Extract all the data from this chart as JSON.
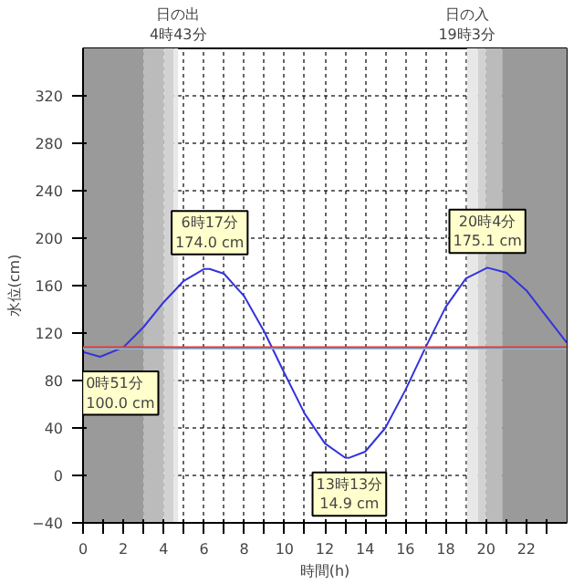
{
  "chart_data": {
    "type": "line",
    "xlabel": "時間(h)",
    "ylabel": "水位(cm)",
    "x": [
      0,
      0.85,
      2,
      3,
      4,
      5,
      6,
      6.283,
      7,
      8,
      9,
      10,
      11,
      12,
      13,
      13.217,
      14,
      15,
      16,
      17,
      18,
      19,
      20.067,
      21,
      22,
      23,
      24
    ],
    "series": [
      {
        "color": "#3333dd",
        "values": [
          104,
          100.0,
          108,
          125,
          146,
          164,
          174,
          174.0,
          170,
          151,
          121,
          86,
          52,
          27,
          15,
          14.9,
          20,
          40,
          72,
          108,
          142,
          166,
          175.1,
          171,
          156,
          134,
          112
        ]
      }
    ],
    "xlim": [
      0,
      24
    ],
    "ylim": [
      -40,
      360
    ],
    "xticks": [
      0,
      {
        "value": 1,
        "label": null
      },
      2,
      {
        "value": 3,
        "label": null
      },
      4,
      {
        "value": 5,
        "label": null
      },
      6,
      {
        "value": 7,
        "label": null
      },
      8,
      {
        "value": 9,
        "label": null
      },
      10,
      {
        "value": 11,
        "label": null
      },
      12,
      {
        "value": 13,
        "label": null
      },
      14,
      {
        "value": 15,
        "label": null
      },
      16,
      {
        "value": 17,
        "label": null
      },
      18,
      {
        "value": 19,
        "label": null
      },
      20,
      {
        "value": 21,
        "label": null
      },
      22,
      {
        "value": 23,
        "label": null
      }
    ],
    "yticks": [
      -40,
      0,
      40,
      80,
      120,
      160,
      200,
      240,
      280,
      320
    ],
    "grid": true,
    "line_style": "solid",
    "ref_lines": [
      {
        "axis": "y",
        "value": 107,
        "color": "#66ccee"
      },
      {
        "axis": "y",
        "value": 108,
        "color": "#ee3333"
      }
    ],
    "bands": [
      {
        "axis": "x",
        "from": 0,
        "to": 3.0,
        "color": "#9a9a9a"
      },
      {
        "axis": "x",
        "from": 3.0,
        "to": 4.0,
        "color": "#bbbbbb"
      },
      {
        "axis": "x",
        "from": 4.0,
        "to": 4.5,
        "color": "#d2d2d2"
      },
      {
        "axis": "x",
        "from": 4.5,
        "to": 4.72,
        "color": "#e8e8e8"
      },
      {
        "axis": "x",
        "from": 19.05,
        "to": 19.6,
        "color": "#e8e8e8"
      },
      {
        "axis": "x",
        "from": 19.6,
        "to": 20.0,
        "color": "#d2d2d2"
      },
      {
        "axis": "x",
        "from": 20.0,
        "to": 20.8,
        "color": "#bbbbbb"
      },
      {
        "axis": "x",
        "from": 20.8,
        "to": 24,
        "color": "#9a9a9a"
      }
    ],
    "annotations": [
      {
        "text": "日の出\n4時43分",
        "x": 4.72,
        "y": 360
      },
      {
        "text": "日の入\n19時3分",
        "x": 19.05,
        "y": 360
      },
      {
        "text": "0時51分\n100.0 cm",
        "x": 0.85,
        "y": 100.0
      },
      {
        "text": "6時17分\n174.0 cm",
        "x": 6.283,
        "y": 174.0
      },
      {
        "text": "13時13分\n14.9 cm",
        "x": 13.217,
        "y": 14.9
      },
      {
        "text": "20時4分\n175.1 cm",
        "x": 20.067,
        "y": 175.1
      }
    ]
  }
}
